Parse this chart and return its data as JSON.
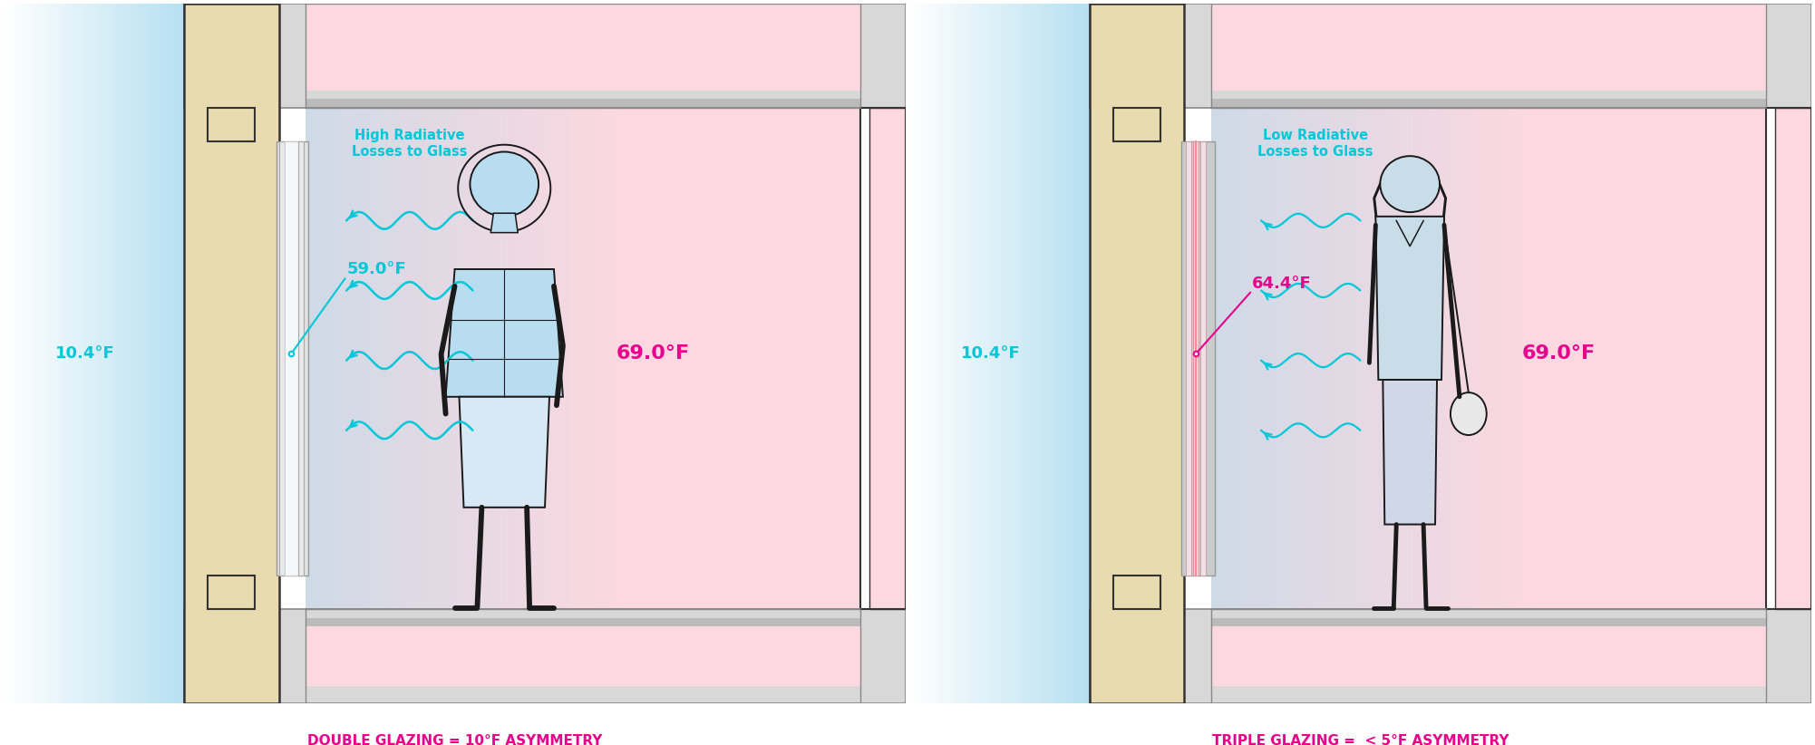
{
  "fig_width": 20.02,
  "fig_height": 8.22,
  "bg_color": "#ffffff",
  "cyan_color": "#00c8d8",
  "magenta_color": "#e8008c",
  "wall_color": "#e8dbb0",
  "wall_stroke": "#333333",
  "slab_color": "#d8d8d8",
  "slab_stroke": "#888888",
  "frame_color": "#c0c0c0",
  "outside_temp": "10.4°F",
  "inside_temp": "69.0°F",
  "double_glass_temp": "59.0°F",
  "triple_glass_temp": "64.4°F",
  "label_double": "DOUBLE GLAZING = 10°F ASYMMETRY",
  "label_triple": "TRIPLE GLAZING =  < 5°F ASYMMETRY",
  "high_rad_label": "High Radiative\nLosses to Glass",
  "low_rad_label": "Low Radiative\nLosses to Glass",
  "pink_bg": "#fdd8e0",
  "blue_outside": "#8ecfea",
  "blue_light": "#aaddee"
}
